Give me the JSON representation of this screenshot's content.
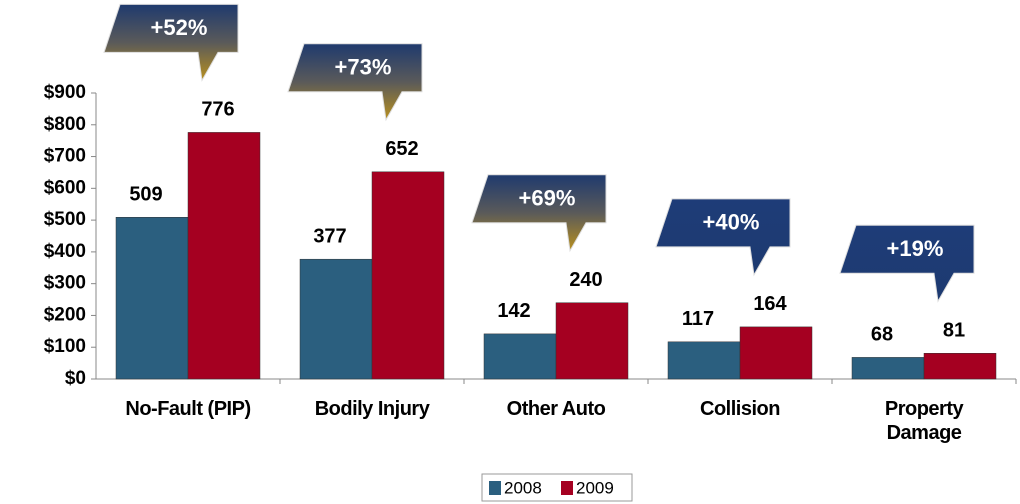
{
  "chart_data": {
    "type": "bar",
    "categories": [
      "No-Fault (PIP)",
      "Bodily Injury",
      "Other Auto",
      "Collision",
      "Property Damage"
    ],
    "series": [
      {
        "name": "2008",
        "color": "#2b5f7f",
        "values": [
          509,
          377,
          142,
          117,
          68
        ]
      },
      {
        "name": "2009",
        "color": "#a50021",
        "values": [
          776,
          652,
          240,
          164,
          81
        ]
      }
    ],
    "annotations": [
      "+52%",
      "+73%",
      "+69%",
      "+40%",
      "+19%"
    ],
    "ylim": [
      0,
      900
    ],
    "yticks": [
      {
        "value": 0,
        "label": "$0"
      },
      {
        "value": 100,
        "label": "$100"
      },
      {
        "value": 200,
        "label": "$200"
      },
      {
        "value": 300,
        "label": "$300"
      },
      {
        "value": 400,
        "label": "$400"
      },
      {
        "value": 500,
        "label": "$500"
      },
      {
        "value": 600,
        "label": "$600"
      },
      {
        "value": 700,
        "label": "$700"
      },
      {
        "value": 800,
        "label": "$800"
      },
      {
        "value": 900,
        "label": "$900"
      }
    ],
    "legend": "bottom"
  }
}
